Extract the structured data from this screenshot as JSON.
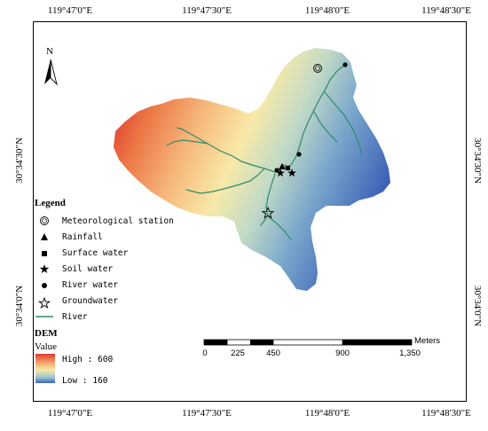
{
  "coords": {
    "top": [
      "119°47'0\"E",
      "119°47'30\"E",
      "119°48'0\"E",
      "119°48'30\"E"
    ],
    "bottom": [
      "119°47'0\"E",
      "119°47'30\"E",
      "119°48'0\"E",
      "119°48'30\"E"
    ],
    "left": [
      "30°34'30\"N",
      "30°34'0\"N"
    ],
    "right": [
      "30°34'30\"N",
      "30°34'0\"N"
    ]
  },
  "north_arrow": {
    "label": "N"
  },
  "legend": {
    "title": "Legend",
    "items": [
      {
        "label": "Meteorological station",
        "icon": "double-circle-icon"
      },
      {
        "label": "Rainfall",
        "icon": "triangle-icon"
      },
      {
        "label": "Surface water",
        "icon": "square-icon"
      },
      {
        "label": "Soil water",
        "icon": "star-icon"
      },
      {
        "label": "River water",
        "icon": "circle-icon"
      },
      {
        "label": "Groundwater",
        "icon": "hollow-star-icon"
      },
      {
        "label": "River",
        "icon": "line-icon"
      }
    ]
  },
  "dem": {
    "title": "DEM",
    "value_label": "Value",
    "high": "High : 600",
    "low": "Low : 160",
    "colors": [
      "#e0362e",
      "#f5a36a",
      "#f7e9a6",
      "#9fc4d0",
      "#3b63b8"
    ]
  },
  "scale_bar": {
    "unit": "Meters",
    "ticks": [
      "0",
      "225",
      "450",
      "900",
      "1,350"
    ]
  },
  "colors": {
    "river": "#2f8a6b"
  }
}
